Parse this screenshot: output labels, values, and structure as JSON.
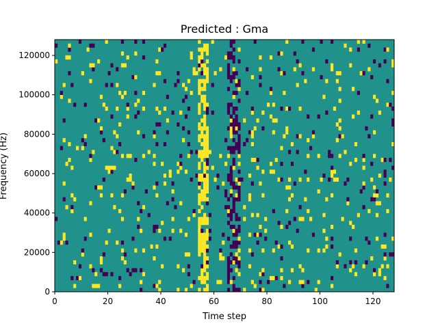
{
  "chart_data": {
    "type": "heatmap",
    "title": "Predicted : Gma",
    "xlabel": "Time step",
    "ylabel": "Frequency (Hz)",
    "xlim": [
      0,
      128
    ],
    "ylim": [
      0,
      128000
    ],
    "x_ticks": [
      0,
      20,
      40,
      60,
      80,
      100,
      120
    ],
    "y_ticks": [
      0,
      20000,
      40000,
      60000,
      80000,
      100000,
      120000
    ],
    "n_time_steps": 128,
    "n_frequency_bins": 64,
    "colormap": "viridis",
    "background_value_color": "#21918c",
    "high_value_color": "#fde725",
    "low_value_color": "#440154",
    "grid": false,
    "legend": "none",
    "vertical_bands": [
      {
        "time_start": 54,
        "time_end": 58,
        "dominant": "high"
      },
      {
        "time_start": 65,
        "time_end": 70,
        "dominant": "low"
      }
    ]
  }
}
